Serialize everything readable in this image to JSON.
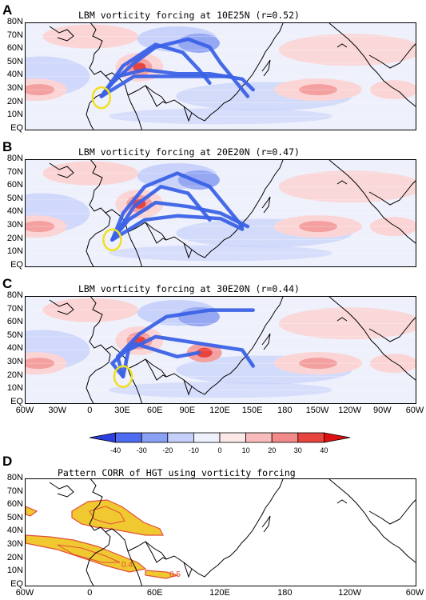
{
  "panels": [
    {
      "letter": "A",
      "title": "LBM vorticity forcing at 10E25N (r=0.52)"
    },
    {
      "letter": "B",
      "title": "LBM vorticity forcing at 20E20N (r=0.47)"
    },
    {
      "letter": "C",
      "title": "LBM vorticity forcing at 30E20N (r=0.44)"
    },
    {
      "letter": "D",
      "title": "Pattern CORR of HGT using vorticity forcing"
    }
  ],
  "lat_labels": [
    "80N",
    "70N",
    "60N",
    "50N",
    "40N",
    "30N",
    "20N",
    "10N",
    "EQ"
  ],
  "lon_labels_abc": [
    "60W",
    "30W",
    "0",
    "30E",
    "60E",
    "90E",
    "120E",
    "150E",
    "180",
    "150W",
    "120W",
    "90W",
    "60W"
  ],
  "lon_labels_d": [
    "60W",
    "0",
    "60E",
    "120E",
    "180",
    "120W",
    "60W"
  ],
  "colorbar": {
    "ticks": [
      "-40",
      "-30",
      "-20",
      "-10",
      "0",
      "10",
      "20",
      "30",
      "40"
    ],
    "colors": [
      "#2b3fe0",
      "#4f6cf0",
      "#8aa0f5",
      "#c5d0fa",
      "#eef1fc",
      "#fde8e8",
      "#f9bcbc",
      "#f28a8a",
      "#e8443f",
      "#dd1111"
    ]
  },
  "contour_labels": [
    "0.4",
    "0.5"
  ]
}
